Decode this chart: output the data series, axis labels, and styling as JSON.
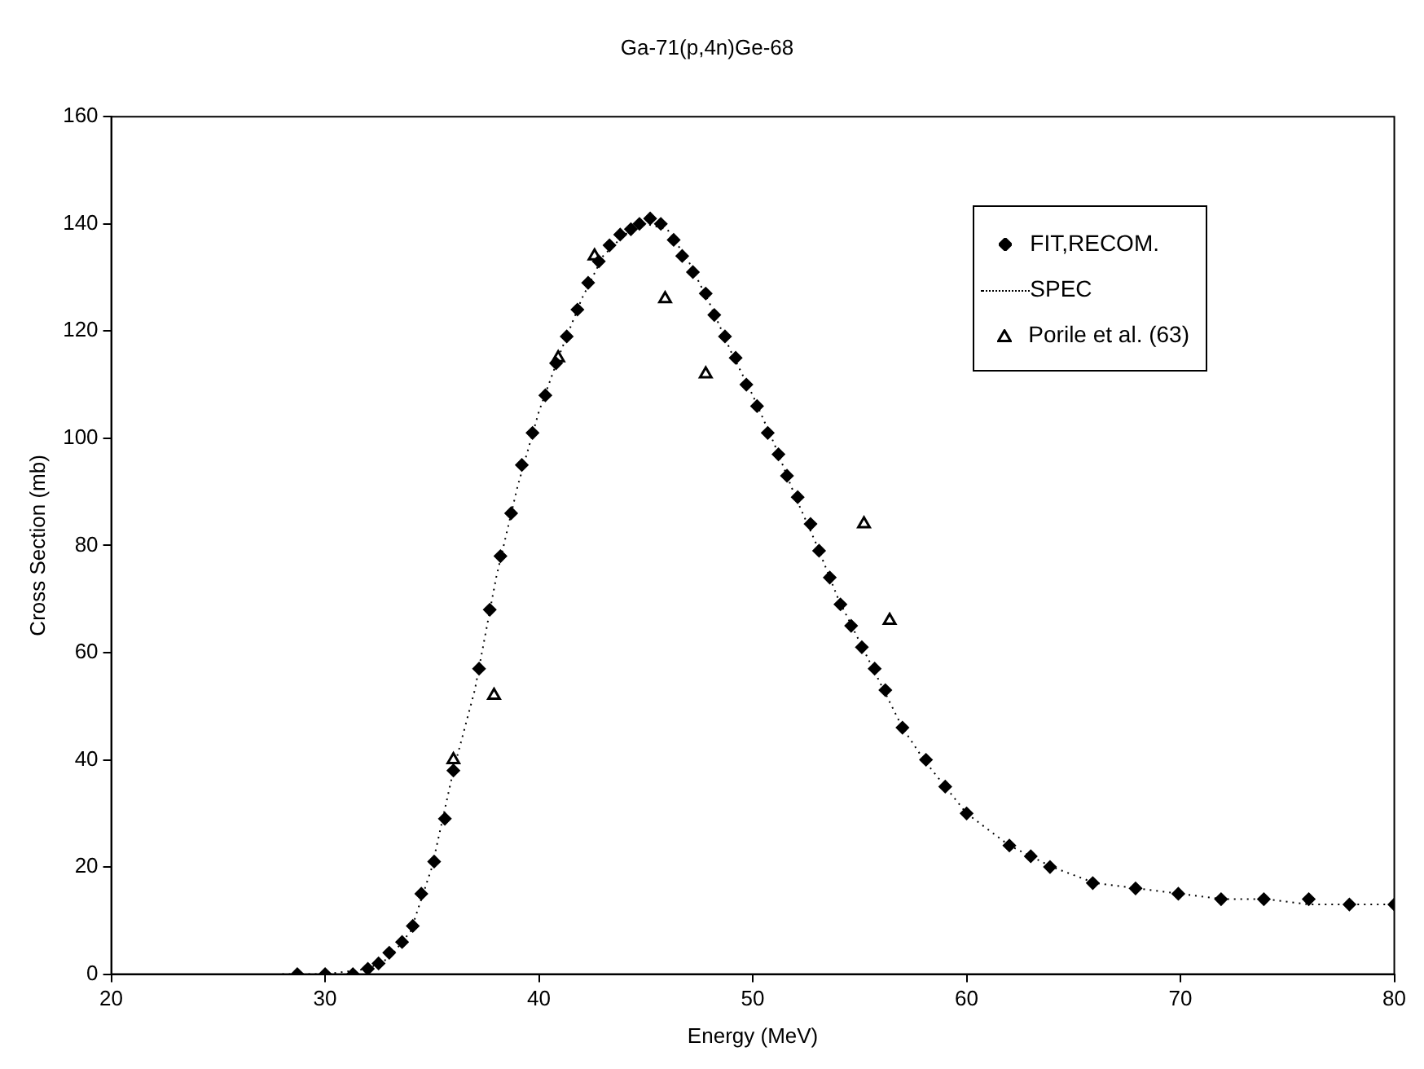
{
  "chart_data": {
    "type": "scatter",
    "title": "Ga-71(p,4n)Ge-68",
    "xlabel": "Energy (MeV)",
    "ylabel": "Cross Section (mb)",
    "xlim": [
      20,
      80
    ],
    "xticks": [
      20,
      30,
      40,
      50,
      60,
      70,
      80
    ],
    "ylim": [
      0,
      160
    ],
    "yticks": [
      0,
      20,
      40,
      60,
      80,
      100,
      120,
      140,
      160
    ],
    "grid": false,
    "legend": "top right",
    "series": [
      {
        "name": "FIT,RECOM.",
        "type": "scatter",
        "marker": "diamond",
        "color": "#000000",
        "x": [
          28.7,
          30,
          31.3,
          32,
          32.5,
          33,
          33.6,
          34.1,
          34.5,
          35.1,
          35.6,
          36,
          37.2,
          37.7,
          38.2,
          38.7,
          39.2,
          39.7,
          40.3,
          40.8,
          41.3,
          41.8,
          42.3,
          42.8,
          43.3,
          43.8,
          44.3,
          44.7,
          45.2,
          45.7,
          46.3,
          46.7,
          47.2,
          47.8,
          48.2,
          48.7,
          49.2,
          49.7,
          50.2,
          50.7,
          51.2,
          51.6,
          52.1,
          52.7,
          53.1,
          53.6,
          54.1,
          54.6,
          55.1,
          55.7,
          56.2,
          57,
          58.1,
          59,
          60,
          62,
          63,
          63.9,
          65.9,
          67.9,
          69.9,
          71.9,
          73.9,
          76,
          77.9,
          80
        ],
        "values": [
          0,
          0,
          0,
          1,
          2,
          4,
          6,
          9,
          15,
          21,
          29,
          38,
          57,
          68,
          78,
          86,
          95,
          101,
          108,
          114,
          119,
          124,
          129,
          133,
          136,
          138,
          139,
          140,
          141,
          140,
          137,
          134,
          131,
          127,
          123,
          119,
          115,
          110,
          106,
          101,
          97,
          93,
          89,
          84,
          79,
          74,
          69,
          65,
          61,
          57,
          53,
          46,
          40,
          35,
          30,
          24,
          22,
          20,
          17,
          16,
          15,
          14,
          14,
          14,
          13,
          13
        ]
      },
      {
        "name": "SPEC",
        "type": "line",
        "marker": "none",
        "line_style": "dotted",
        "color": "#000000",
        "x": [
          28,
          30,
          32,
          33,
          34,
          35,
          36,
          37,
          38,
          39,
          40,
          41,
          42,
          43,
          44,
          45,
          46,
          47,
          48,
          49,
          50,
          51,
          52,
          53,
          54,
          55,
          56,
          57,
          58,
          60,
          62,
          64,
          66,
          68,
          70,
          72,
          74,
          76,
          78,
          80
        ],
        "values": [
          0,
          0,
          1,
          3,
          8,
          20,
          38,
          53,
          74,
          91,
          105,
          116,
          126,
          134,
          138,
          140,
          139,
          133,
          125,
          116,
          108,
          99,
          89,
          80,
          70,
          62,
          54,
          46,
          40,
          30,
          24,
          20,
          17,
          16,
          15,
          14,
          14,
          13,
          13,
          13
        ]
      },
      {
        "name": "Porile et al. (63)",
        "type": "scatter",
        "marker": "triangle",
        "color": "#000000",
        "x": [
          36,
          37.9,
          40.9,
          42.6,
          45.9,
          47.8,
          55.2,
          56.4
        ],
        "values": [
          40,
          52,
          115,
          134,
          126,
          112,
          84,
          66
        ]
      }
    ]
  }
}
